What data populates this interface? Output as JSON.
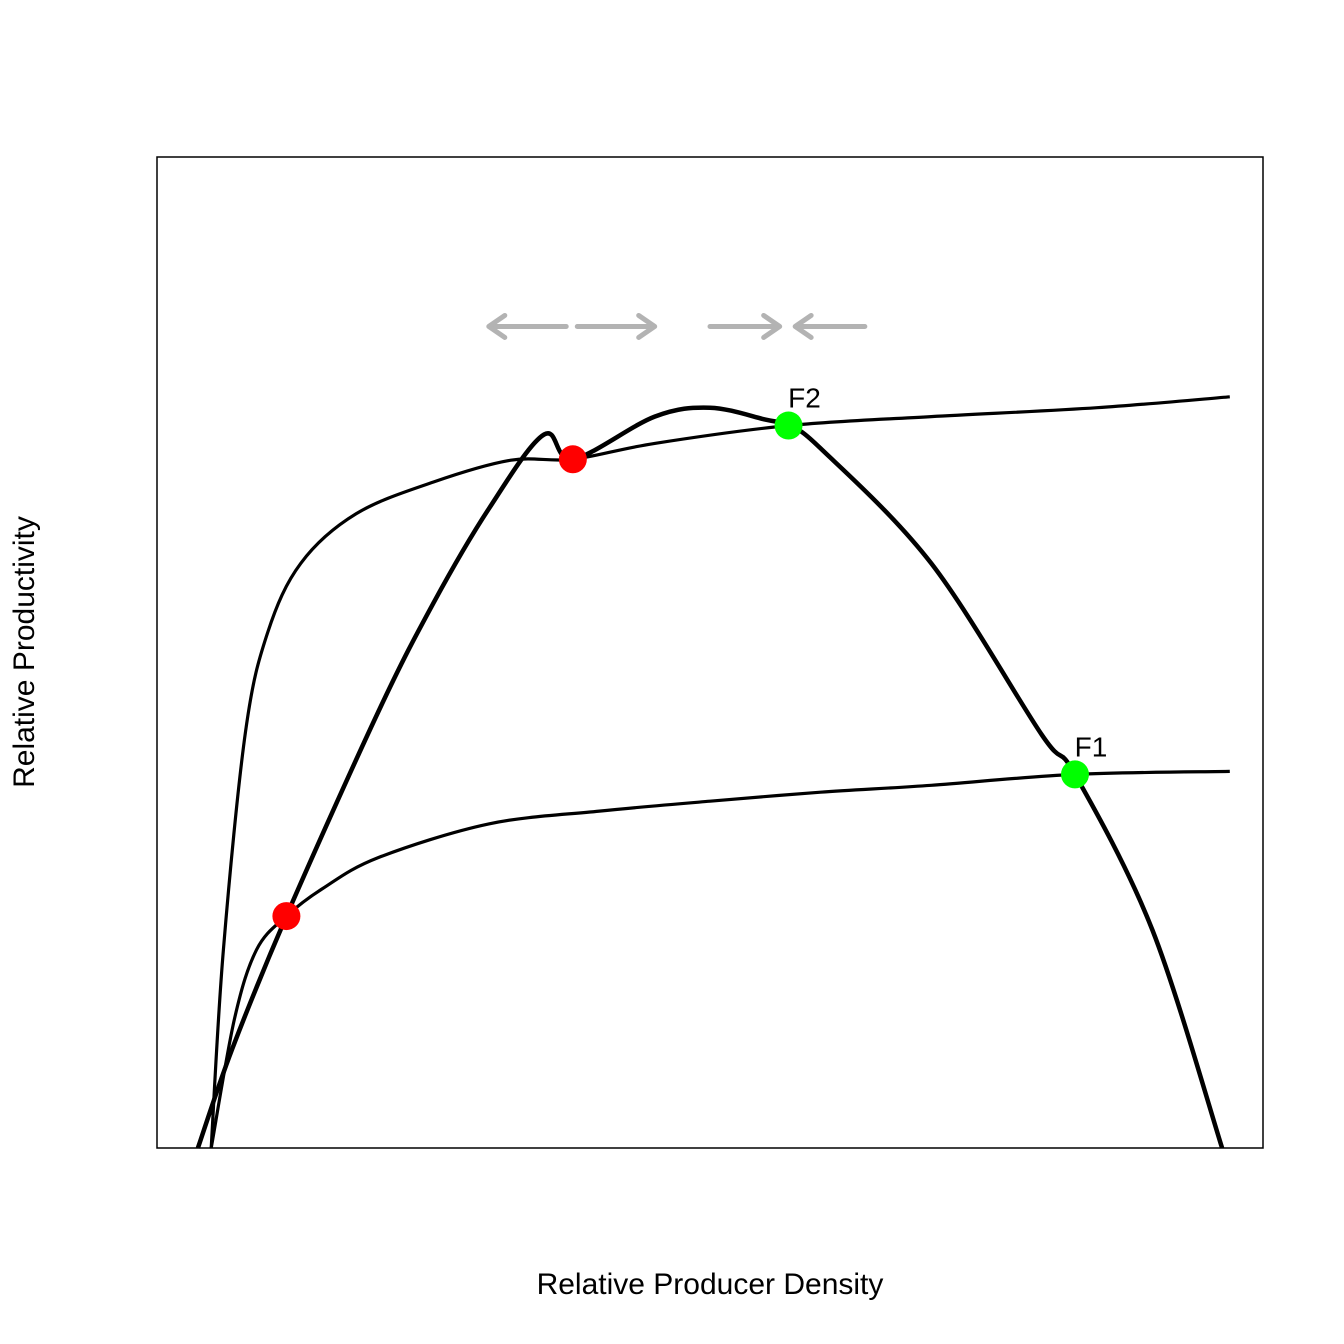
{
  "chart_data": {
    "type": "line",
    "title": "",
    "xlabel": "Relative Producer Density",
    "ylabel": "Relative Productivity",
    "xlim": [
      0,
      1
    ],
    "ylim": [
      0,
      1
    ],
    "axis_ticks_shown": false,
    "grid": false,
    "colors": {
      "curves": "#000000",
      "unstable_equilibrium": "#ff0000",
      "stable_equilibrium": "#00ff00",
      "arrows": "#b3b3b3"
    },
    "series": [
      {
        "role": "production curve",
        "line_weight": "heavy",
        "x": [
          0.037,
          0.068,
          0.117,
          0.2,
          0.25,
          0.3,
          0.35,
          0.376,
          0.45,
          0.5,
          0.55,
          0.571,
          0.6,
          0.7,
          0.8,
          0.83,
          0.9,
          0.963
        ],
        "y": [
          0.0,
          0.1,
          0.234,
          0.44,
          0.55,
          0.645,
          0.72,
          0.695,
          0.738,
          0.747,
          0.735,
          0.729,
          0.706,
          0.59,
          0.417,
          0.377,
          0.22,
          0.0
        ]
      },
      {
        "role": "curve 2",
        "line_weight": "normal",
        "x": [
          0.049,
          0.06,
          0.08,
          0.1,
          0.13,
          0.18,
          0.25,
          0.32,
          0.376,
          0.45,
          0.571,
          0.7,
          0.85,
          0.97
        ],
        "y": [
          0.0,
          0.2,
          0.42,
          0.52,
          0.59,
          0.64,
          0.672,
          0.694,
          0.695,
          0.711,
          0.729,
          0.738,
          0.747,
          0.758
        ]
      },
      {
        "role": "curve 1",
        "line_weight": "normal",
        "x": [
          0.049,
          0.07,
          0.09,
          0.117,
          0.15,
          0.2,
          0.3,
          0.4,
          0.5,
          0.6,
          0.7,
          0.83,
          0.97
        ],
        "y": [
          0.0,
          0.13,
          0.2,
          0.234,
          0.262,
          0.293,
          0.327,
          0.34,
          0.35,
          0.359,
          0.366,
          0.377,
          0.38
        ]
      }
    ],
    "points": [
      {
        "x": 0.117,
        "y": 0.234,
        "status": "unstable",
        "label": ""
      },
      {
        "x": 0.376,
        "y": 0.695,
        "status": "unstable",
        "label": ""
      },
      {
        "x": 0.571,
        "y": 0.729,
        "status": "stable",
        "label": "F2"
      },
      {
        "x": 0.83,
        "y": 0.377,
        "status": "stable",
        "label": "F1"
      }
    ],
    "arrows": [
      {
        "x_from": 0.37,
        "x_to": 0.3,
        "y": 0.829
      },
      {
        "x_from": 0.38,
        "x_to": 0.45,
        "y": 0.829
      },
      {
        "x_from": 0.5,
        "x_to": 0.563,
        "y": 0.829
      },
      {
        "x_from": 0.64,
        "x_to": 0.577,
        "y": 0.829
      }
    ]
  }
}
